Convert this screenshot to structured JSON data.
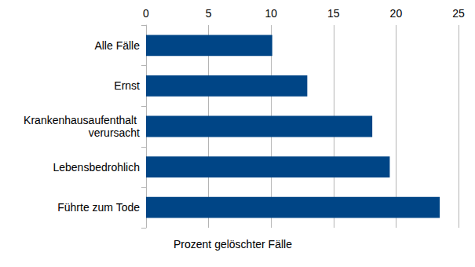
{
  "chart_data": {
    "type": "bar",
    "orientation": "horizontal",
    "xlabel": "Prozent gelöschter Fälle",
    "categories": [
      "Alle Fälle",
      "Ernst",
      "Krankenhausaufenthalt verursacht",
      "Lebensbedrohlich",
      "Führte zum Tode"
    ],
    "values": [
      10.1,
      12.9,
      18.1,
      19.5,
      23.5
    ],
    "color": "#004586",
    "xlim": [
      0,
      25
    ],
    "xticks": [
      0,
      5,
      10,
      15,
      20,
      25
    ],
    "grid": true
  }
}
